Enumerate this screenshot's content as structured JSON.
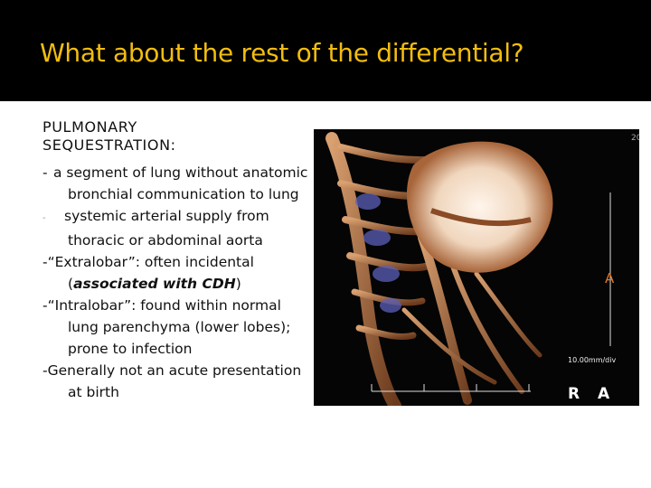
{
  "header": {
    "title": "What about the rest of the differential?"
  },
  "body": {
    "heading": "PULMONARY SEQUESTRATION:",
    "items": [
      {
        "marker": "-",
        "text": "a segment of lung without anatomic bronchial communication to lung"
      },
      {
        "marker": "-",
        "text": "systemic arterial supply from thoracic or abdominal aorta"
      },
      {
        "marker": "-",
        "text": "“Extralobar”: often incidental (",
        "emphasis": "associated with CDH",
        "after": ")"
      },
      {
        "marker": "-",
        "text": "“Intralobar”: found within normal lung parenchyma (lower lobes); prone to infection"
      },
      {
        "marker": "-",
        "text": "Generally not an acute presentation at birth"
      }
    ]
  },
  "figure": {
    "corner_label": "20",
    "side_label": "A",
    "scale_label": "10.00mm/div",
    "orient_left": "R",
    "orient_right": "A"
  }
}
